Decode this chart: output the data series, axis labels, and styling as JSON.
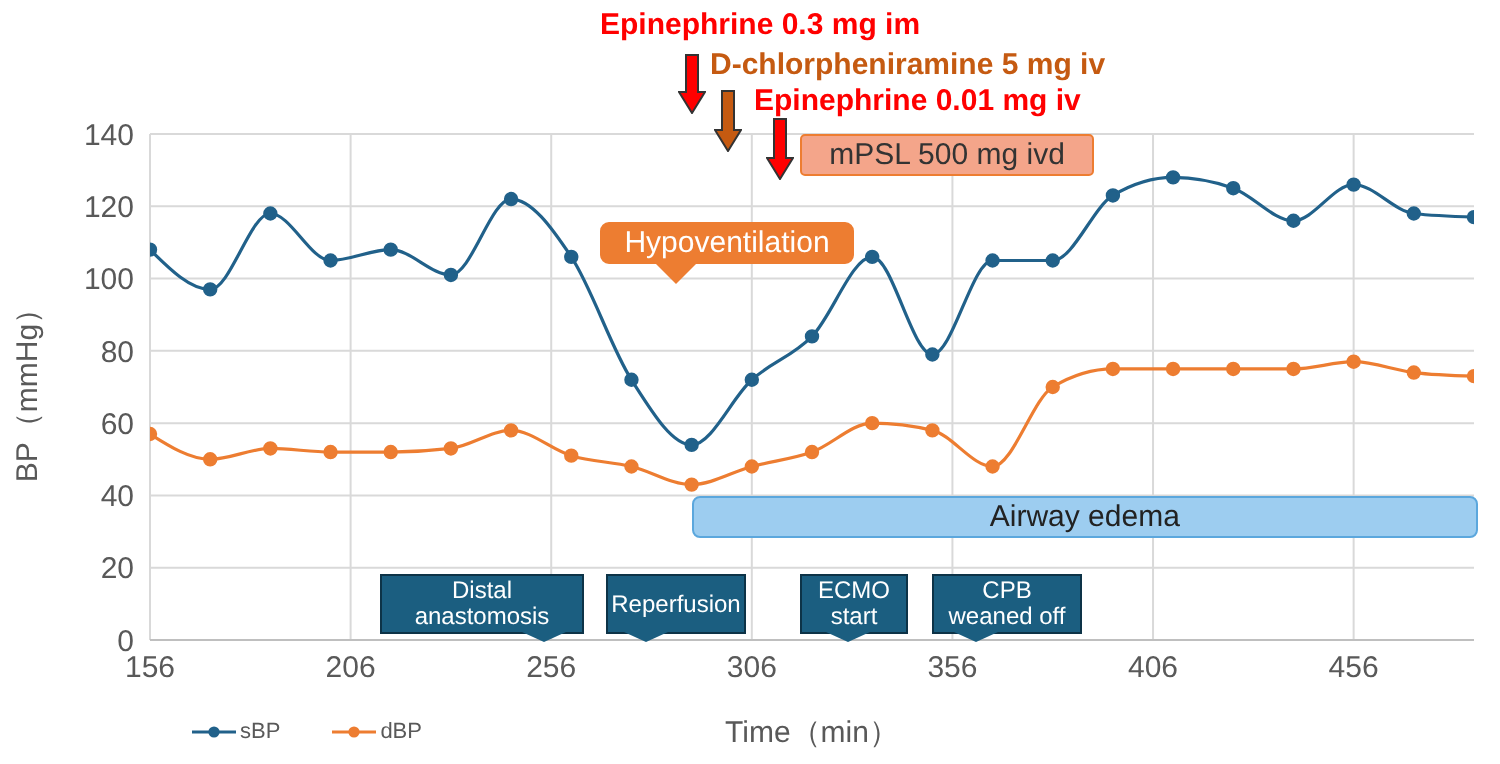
{
  "chart_data": {
    "type": "line",
    "xlabel": "Time（min）",
    "ylabel": "BP（mmHg）",
    "x": [
      156,
      171,
      186,
      201,
      216,
      231,
      246,
      261,
      276,
      291,
      306,
      321,
      336,
      351,
      366,
      381,
      396,
      411,
      426,
      441,
      456,
      471,
      486
    ],
    "series": [
      {
        "name": "sBP",
        "color": "#21618a",
        "values": [
          108,
          97,
          118,
          105,
          108,
          101,
          122,
          106,
          72,
          54,
          72,
          84,
          106,
          79,
          105,
          105,
          123,
          128,
          125,
          116,
          126,
          118,
          117
        ]
      },
      {
        "name": "dBP",
        "color": "#ed7d31",
        "values": [
          57,
          50,
          53,
          52,
          52,
          53,
          58,
          51,
          48,
          43,
          48,
          52,
          60,
          58,
          48,
          70,
          75,
          75,
          75,
          75,
          77,
          74,
          73
        ]
      }
    ],
    "xlim": [
      156,
      486
    ],
    "xticks": [
      156,
      206,
      256,
      306,
      356,
      406,
      456
    ],
    "ylim": [
      0,
      140
    ],
    "yticks": [
      0,
      20,
      40,
      60,
      80,
      100,
      120,
      140
    ],
    "grid": true,
    "legend": "bottom left",
    "marker": "circle",
    "line_style": "solid",
    "bands": [
      {
        "axis": "x",
        "from": 291,
        "to": 486,
        "label": "Airway edema",
        "color": "#9dcdf0"
      }
    ],
    "annotations": [
      "Epinephrine 0.3 mg im",
      "D-chlorpheniramine 5 mg iv",
      "Epinephrine 0.01 mg iv",
      "mPSL 500 mg ivd",
      "Hypoventilation",
      "Distal\nanastomosis",
      "Reperfusion",
      "ECMO\nstart",
      "CPB\nweaned off"
    ]
  }
}
